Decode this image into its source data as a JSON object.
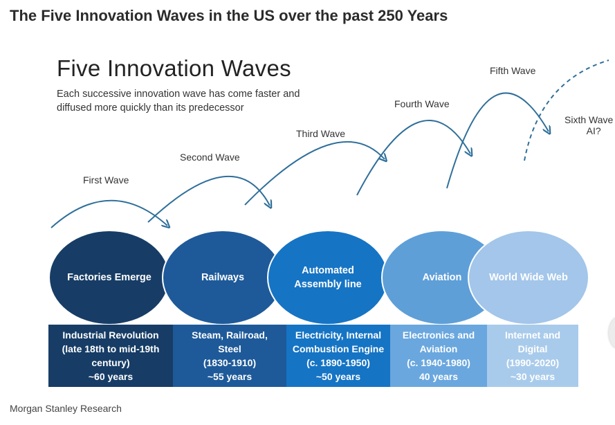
{
  "page": {
    "title": "The Five Innovation Waves in the US over the past 250 Years",
    "source": "Morgan Stanley Research"
  },
  "graphic": {
    "heading": "Five Innovation Waves",
    "subtitle": "Each successive innovation wave has come faster and diffused more quickly than its predecessor",
    "waves": [
      {
        "label": "First Wave"
      },
      {
        "label": "Second Wave"
      },
      {
        "label": "Third Wave"
      },
      {
        "label": "Fourth Wave"
      },
      {
        "label": "Fifth Wave"
      },
      {
        "label": "Sixth Wave",
        "sublabel": "AI?"
      }
    ],
    "stages": [
      {
        "circle": "Factories Emerge",
        "box": "Industrial Revolution\n(late 18th to mid-19th\ncentury)\n~60 years",
        "circle_color": "#173d66",
        "box_color": "#173d66"
      },
      {
        "circle": "Railways",
        "box": "Steam, Railroad,\nSteel\n(1830-1910)\n~55 years",
        "circle_color": "#1e5a99",
        "box_color": "#1e5a99"
      },
      {
        "circle": "Automated Assembly line",
        "box": "Electricity, Internal\nCombustion Engine\n(c. 1890-1950)\n~50 years",
        "circle_color": "#1674c4",
        "box_color": "#1674c4"
      },
      {
        "circle": "Aviation",
        "box": "Electronics and\nAviation\n(c. 1940-1980)\n40 years",
        "circle_color": "#5e9fd8",
        "box_color": "#6aa7de"
      },
      {
        "circle": "World Wide Web",
        "box": "Internet and\nDigital\n(1990-2020)\n~30 years",
        "circle_color": "#a3c6ea",
        "box_color": "#a9cbeb"
      }
    ],
    "arrow_color": "#2f6f9a"
  }
}
